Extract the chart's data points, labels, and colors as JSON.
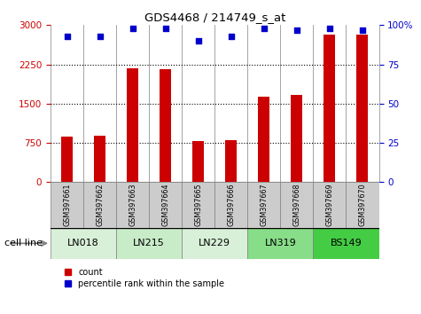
{
  "title": "GDS4468 / 214749_s_at",
  "samples": [
    "GSM397661",
    "GSM397662",
    "GSM397663",
    "GSM397664",
    "GSM397665",
    "GSM397666",
    "GSM397667",
    "GSM397668",
    "GSM397669",
    "GSM397670"
  ],
  "counts": [
    870,
    880,
    2180,
    2160,
    780,
    800,
    1640,
    1670,
    2820,
    2820
  ],
  "percentile_ranks": [
    93,
    93,
    98,
    98,
    90,
    93,
    98,
    97,
    98,
    97
  ],
  "cell_lines": [
    {
      "label": "LN018",
      "start": 0,
      "end": 2,
      "color": "#d8f0d8"
    },
    {
      "label": "LN215",
      "start": 2,
      "end": 4,
      "color": "#c8ecc8"
    },
    {
      "label": "LN229",
      "start": 4,
      "end": 6,
      "color": "#d8f0d8"
    },
    {
      "label": "LN319",
      "start": 6,
      "end": 8,
      "color": "#88dd88"
    },
    {
      "label": "BS149",
      "start": 8,
      "end": 10,
      "color": "#44cc44"
    }
  ],
  "bar_color": "#cc0000",
  "dot_color": "#0000cc",
  "ylim_left": [
    0,
    3000
  ],
  "ylim_right": [
    0,
    100
  ],
  "yticks_left": [
    0,
    750,
    1500,
    2250,
    3000
  ],
  "yticks_right": [
    0,
    25,
    50,
    75,
    100
  ],
  "bar_width": 0.35,
  "legend_label_count": "count",
  "legend_label_pct": "percentile rank within the sample",
  "cell_line_label": "cell line",
  "sample_label_bg": "#cccccc"
}
